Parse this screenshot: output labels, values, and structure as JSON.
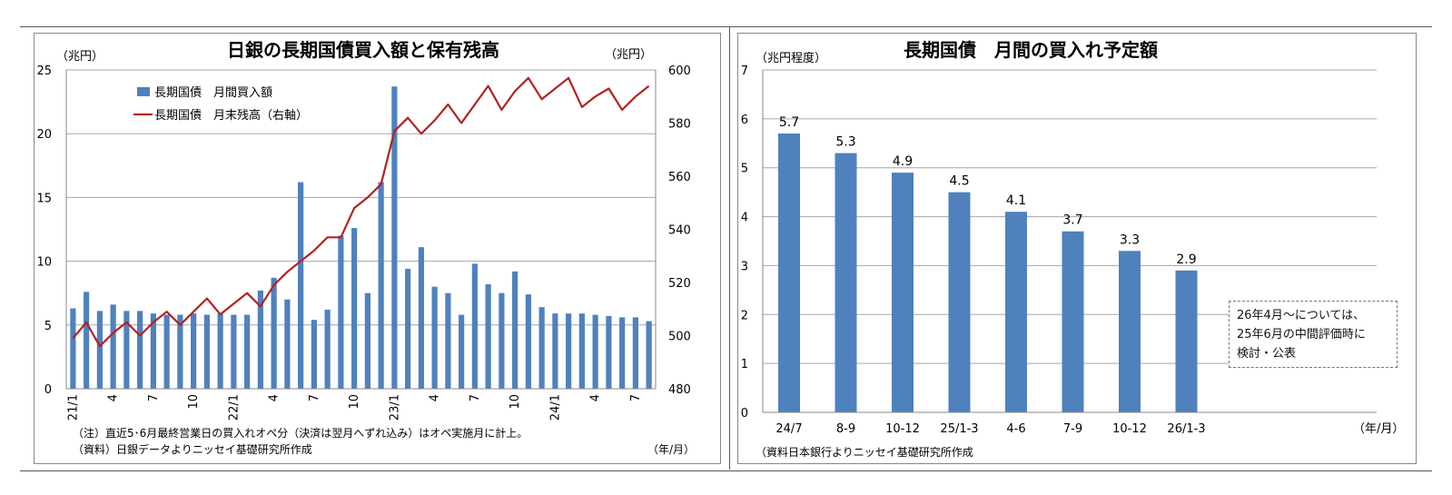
{
  "left": {
    "title": "日銀の長期国債買入額と保有残高",
    "y_left_unit": "（兆円）",
    "y_right_unit": "（兆円）",
    "x_unit": "（年/月）",
    "note1": "（注）直近5･6月最終営業日の買入れオペ分（決済は翌月へずれ込み）はオペ実施月に計上。",
    "note2": "（資料）日銀データよりニッセイ基礎研究所作成"
  },
  "right": {
    "title": "長期国債　月間の買入れ予定額",
    "y_unit": "（兆円程度）",
    "x_unit": "（年/月）",
    "source": "（資料日本銀行よりニッセイ基礎研究所作成",
    "annotation": [
      "26年4月～については、",
      "25年6月の中間評価時に",
      "検討・公表"
    ]
  },
  "chart_data": [
    {
      "type": "bar+line",
      "title": "日銀の長期国債買入額と保有残高",
      "x_tick_labels": [
        "21/1",
        "4",
        "7",
        "10",
        "22/1",
        "4",
        "7",
        "10",
        "23/1",
        "4",
        "7",
        "10",
        "24/1",
        "4",
        "7"
      ],
      "x_tick_months": [
        0,
        3,
        6,
        9,
        12,
        15,
        18,
        21,
        24,
        27,
        30,
        33,
        36,
        39,
        42
      ],
      "series": [
        {
          "name": "長期国債　月間買入額",
          "kind": "bar",
          "axis": "left",
          "color": "#4f81bd",
          "values": [
            6.3,
            7.6,
            6.1,
            6.6,
            6.1,
            6.1,
            5.9,
            5.8,
            5.8,
            5.9,
            5.8,
            5.9,
            5.8,
            5.8,
            7.7,
            8.7,
            7.0,
            16.2,
            5.4,
            6.2,
            12.0,
            12.6,
            7.5,
            16.2,
            23.7,
            9.4,
            11.1,
            8.0,
            7.5,
            5.8,
            9.8,
            8.2,
            7.5,
            9.2,
            7.4,
            6.4,
            5.9,
            5.9,
            5.9,
            5.8,
            5.7,
            5.6,
            5.6,
            5.3
          ]
        },
        {
          "name": "長期国債　月末残高（右軸）",
          "kind": "line",
          "axis": "right",
          "color": "#b22222",
          "values": [
            499,
            505,
            496,
            501,
            505,
            500,
            505,
            509,
            504,
            509,
            514,
            508,
            512,
            516,
            511,
            519,
            524,
            528,
            532,
            537,
            537,
            548,
            552,
            557,
            577,
            582,
            576,
            581,
            587,
            580,
            587,
            594,
            585,
            592,
            597,
            589,
            593,
            597,
            586,
            590,
            593,
            585,
            590,
            594
          ]
        }
      ],
      "y_left": {
        "min": 0,
        "max": 25,
        "ticks": [
          0,
          5,
          10,
          15,
          20,
          25
        ]
      },
      "y_right": {
        "min": 480,
        "max": 600,
        "ticks": [
          480,
          500,
          520,
          540,
          560,
          580,
          600
        ]
      },
      "legend": "top-left",
      "grid": true
    },
    {
      "type": "bar",
      "title": "長期国債　月間の買入れ予定額",
      "categories": [
        "24/7",
        "8-9",
        "10-12",
        "25/1-3",
        "4-6",
        "7-9",
        "10-12",
        "26/1-3"
      ],
      "values": [
        5.7,
        5.3,
        4.9,
        4.5,
        4.1,
        3.7,
        3.3,
        2.9
      ],
      "color": "#4f81bd",
      "ylim": [
        0,
        7
      ],
      "y_ticks": [
        0,
        1,
        2,
        3,
        4,
        5,
        6,
        7
      ],
      "grid": true
    }
  ]
}
